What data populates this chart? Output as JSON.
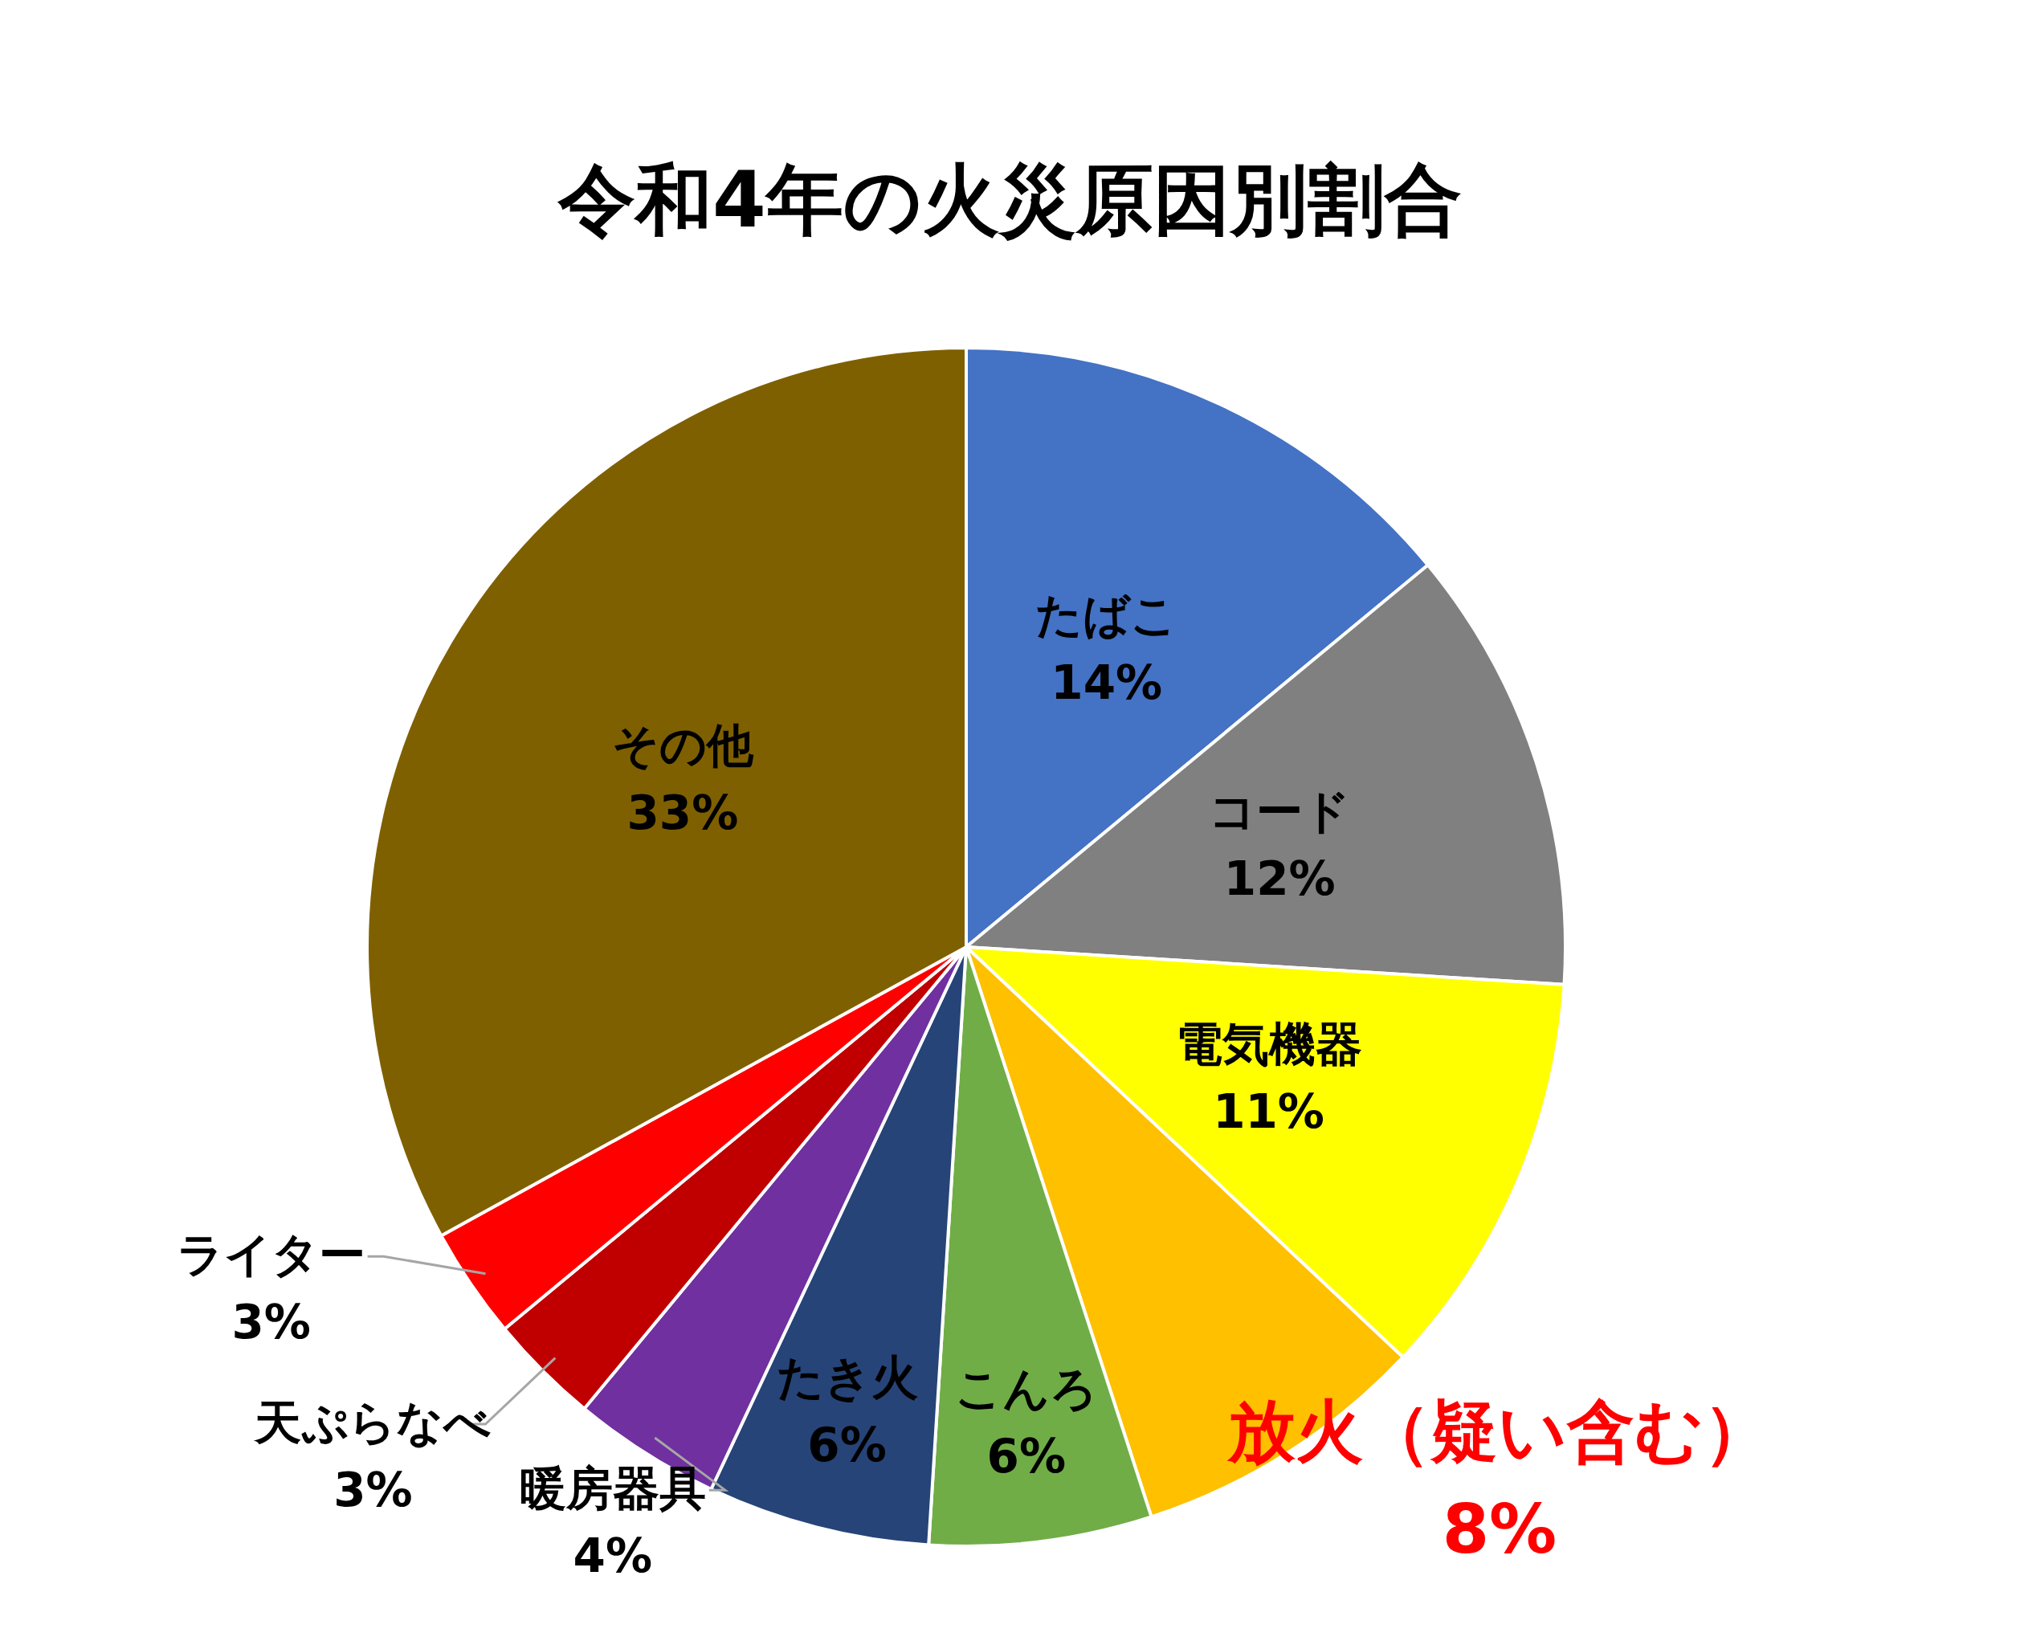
{
  "chart_data": {
    "type": "pie",
    "title": "令和4年の火災原因別割合",
    "categories": [
      "たばこ",
      "コード",
      "電気機器",
      "放火（疑い含む）",
      "こんろ",
      "たき火",
      "暖房器具",
      "天ぷらなべ",
      "ライター",
      "その他"
    ],
    "values": [
      14,
      12,
      11,
      8,
      6,
      6,
      4,
      3,
      3,
      33
    ],
    "colors": [
      "#4472c4",
      "#808080",
      "#ffff00",
      "#ffc000",
      "#70ad47",
      "#264478",
      "#7030a0",
      "#c00000",
      "#ff0000",
      "#7f6000"
    ],
    "value_labels": [
      "14%",
      "12%",
      "11%",
      "8%",
      "6%",
      "6%",
      "4%",
      "3%",
      "3%",
      "33%"
    ]
  }
}
